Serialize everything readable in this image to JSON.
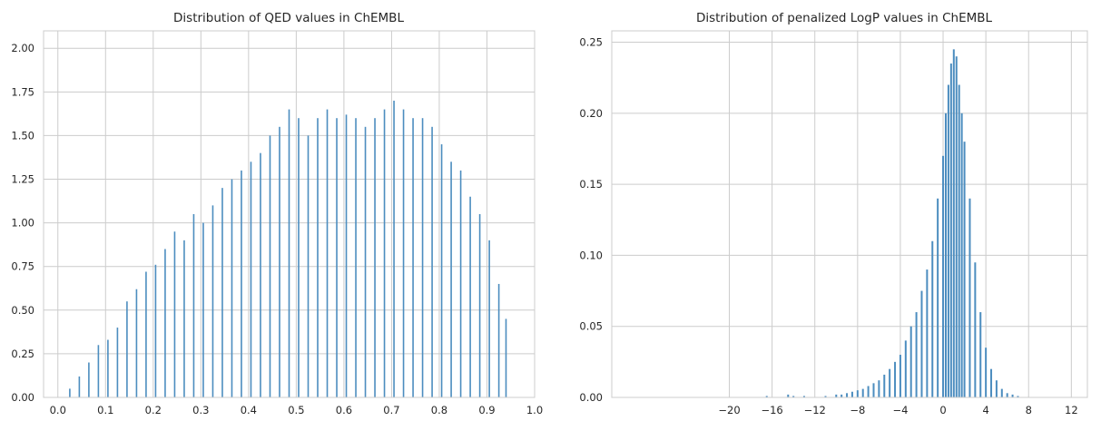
{
  "chart_data": [
    {
      "type": "bar",
      "title": "Distribution of QED values in ChEMBL",
      "xlabel": "",
      "ylabel": "",
      "xlim": [
        -0.03,
        1.0
      ],
      "ylim": [
        0,
        2.1
      ],
      "grid": true,
      "x_ticks": [
        "0.0",
        "0.1",
        "0.2",
        "0.3",
        "0.4",
        "0.5",
        "0.6",
        "0.7",
        "0.8",
        "0.9",
        "1.0"
      ],
      "x_tick_values": [
        0.0,
        0.1,
        0.2,
        0.3,
        0.4,
        0.5,
        0.6,
        0.7,
        0.8,
        0.9,
        1.0
      ],
      "y_ticks": [
        "0.00",
        "0.25",
        "0.50",
        "0.75",
        "1.00",
        "1.25",
        "1.50",
        "1.75",
        "2.00"
      ],
      "y_tick_values": [
        0,
        0.25,
        0.5,
        0.75,
        1.0,
        1.25,
        1.5,
        1.75,
        2.0
      ],
      "bar_color": "#4c8dbf",
      "x": [
        0.025,
        0.045,
        0.065,
        0.085,
        0.105,
        0.125,
        0.145,
        0.165,
        0.185,
        0.205,
        0.225,
        0.245,
        0.265,
        0.285,
        0.305,
        0.325,
        0.345,
        0.365,
        0.385,
        0.405,
        0.425,
        0.445,
        0.465,
        0.485,
        0.505,
        0.525,
        0.545,
        0.565,
        0.585,
        0.605,
        0.625,
        0.645,
        0.665,
        0.685,
        0.705,
        0.725,
        0.745,
        0.765,
        0.785,
        0.805,
        0.825,
        0.845,
        0.865,
        0.885,
        0.905,
        0.925,
        0.94
      ],
      "values": [
        0.05,
        0.12,
        0.2,
        0.3,
        0.33,
        0.4,
        0.55,
        0.62,
        0.72,
        0.76,
        0.85,
        0.95,
        0.9,
        1.05,
        1.0,
        1.1,
        1.2,
        1.25,
        1.3,
        1.35,
        1.4,
        1.5,
        1.55,
        1.65,
        1.6,
        1.5,
        1.6,
        1.65,
        1.6,
        1.62,
        1.6,
        1.55,
        1.6,
        1.65,
        1.7,
        1.65,
        1.6,
        1.6,
        1.55,
        1.45,
        1.35,
        1.3,
        1.15,
        1.05,
        0.9,
        0.65,
        0.45
      ]
    },
    {
      "type": "bar",
      "title": "Distribution of penalized LogP values in ChEMBL",
      "xlabel": "",
      "ylabel": "",
      "xlim": [
        -31,
        13.5
      ],
      "ylim": [
        0,
        0.258
      ],
      "grid": true,
      "x_ticks": [
        "−20",
        "−16",
        "−12",
        "−8",
        "−4",
        "0",
        "4",
        "8",
        "12"
      ],
      "x_tick_values": [
        -20,
        -16,
        -12,
        -8,
        -4,
        0,
        4,
        8,
        12
      ],
      "y_ticks": [
        "0.00",
        "0.05",
        "0.10",
        "0.15",
        "0.20",
        "0.25"
      ],
      "y_tick_values": [
        0,
        0.05,
        0.1,
        0.15,
        0.2,
        0.25
      ],
      "bar_color": "#4c8dbf",
      "x": [
        -16.5,
        -14.5,
        -14.0,
        -13.0,
        -11.0,
        -10.0,
        -9.5,
        -9.0,
        -8.5,
        -8.0,
        -7.5,
        -7.0,
        -6.5,
        -6.0,
        -5.5,
        -5.0,
        -4.5,
        -4.0,
        -3.5,
        -3.0,
        -2.5,
        -2.0,
        -1.5,
        -1.0,
        -0.5,
        0.0,
        0.25,
        0.5,
        0.75,
        1.0,
        1.25,
        1.5,
        1.75,
        2.0,
        2.5,
        3.0,
        3.5,
        4.0,
        4.5,
        5.0,
        5.5,
        6.0,
        6.5,
        7.0
      ],
      "values": [
        0.001,
        0.002,
        0.001,
        0.001,
        0.001,
        0.002,
        0.002,
        0.003,
        0.004,
        0.005,
        0.006,
        0.008,
        0.01,
        0.012,
        0.016,
        0.02,
        0.025,
        0.03,
        0.04,
        0.05,
        0.06,
        0.075,
        0.09,
        0.11,
        0.14,
        0.17,
        0.2,
        0.22,
        0.235,
        0.245,
        0.24,
        0.22,
        0.2,
        0.18,
        0.14,
        0.095,
        0.06,
        0.035,
        0.02,
        0.012,
        0.006,
        0.003,
        0.002,
        0.001
      ]
    }
  ]
}
